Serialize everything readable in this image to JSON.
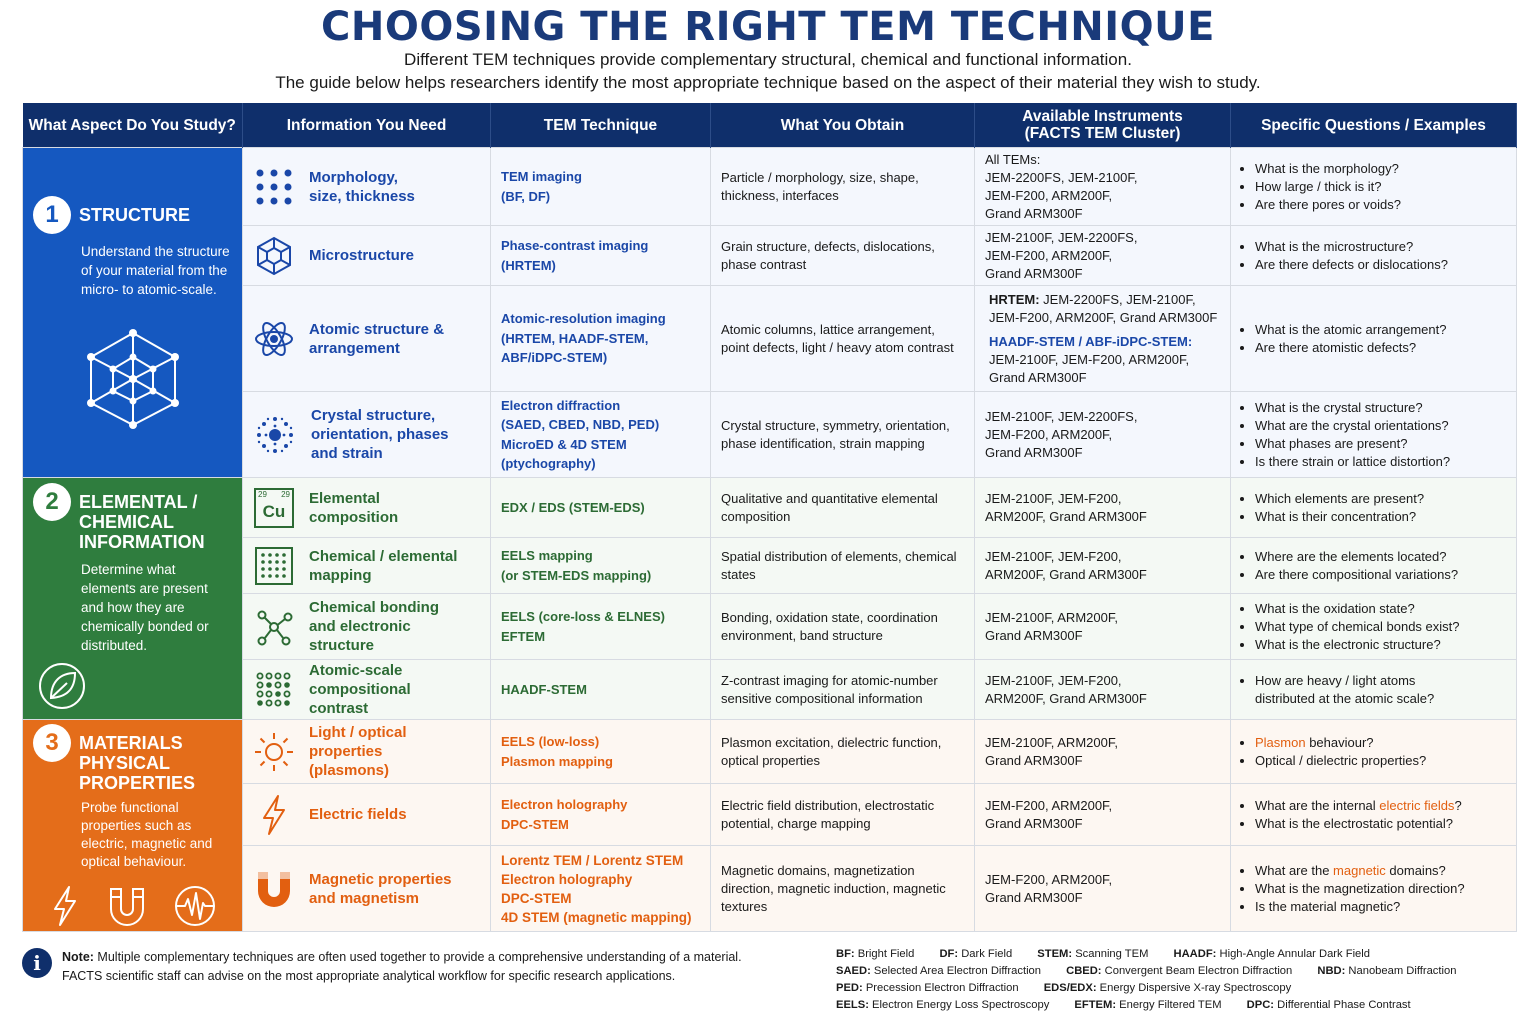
{
  "title": "CHOOSING THE RIGHT TEM TECHNIQUE",
  "subtitle1": "Different TEM techniques provide complementary structural, chemical and functional information.",
  "subtitle2": "The guide below helps researchers identify the most appropriate technique based on the aspect of their material they wish to study.",
  "headers": {
    "aspect": "What Aspect Do You Study?",
    "info": "Information You Need",
    "tech": "TEM Technique",
    "obtain": "What You Obtain",
    "instr_line1": "Available Instruments",
    "instr_line2": "(FACTS TEM Cluster)",
    "questions": "Specific Questions / Examples"
  },
  "aspects": {
    "structure": {
      "num": "1",
      "title": "STRUCTURE",
      "desc": "Understand the structure of your material from the micro- to atomic-scale."
    },
    "chemical": {
      "num": "2",
      "title_l1": "ELEMENTAL /",
      "title_l2": "CHEMICAL",
      "title_l3": "INFORMATION",
      "desc": "Determine what elements are present and how they are chemically bonded or distributed."
    },
    "physical": {
      "num": "3",
      "title_l1": "MATERIALS",
      "title_l2": "PHYSICAL",
      "title_l3": "PROPERTIES",
      "desc": "Probe functional properties such as electric, magnetic and optical behaviour."
    }
  },
  "rows": {
    "r1": {
      "info_l1": "Morphology,",
      "info_l2": "size, thickness",
      "tech_l1": "TEM imaging",
      "tech_l2": "(BF, DF)",
      "obtain": "Particle / morphology, size, shape, thickness, interfaces",
      "instr_l1": "All TEMs:",
      "instr_l2": "JEM-2200FS, JEM-2100F,",
      "instr_l3": "JEM-F200, ARM200F,",
      "instr_l4": "Grand ARM300F",
      "q1": "What is the morphology?",
      "q2": "How large / thick is it?",
      "q3": "Are there pores or voids?"
    },
    "r2": {
      "info": "Microstructure",
      "tech_l1": "Phase-contrast imaging",
      "tech_l2": "(HRTEM)",
      "obtain": "Grain structure, defects, dislocations, phase contrast",
      "instr_l1": "JEM-2100F, JEM-2200FS,",
      "instr_l2": "JEM-F200, ARM200F,",
      "instr_l3": "Grand ARM300F",
      "q1": "What is the microstructure?",
      "q2": "Are there defects or dislocations?"
    },
    "r3": {
      "info_l1": "Atomic structure &",
      "info_l2": "arrangement",
      "tech_l1": "Atomic-resolution imaging",
      "tech_l2": "(HRTEM, HAADF-STEM,",
      "tech_l3": "ABF/iDPC-STEM)",
      "obtain": "Atomic columns, lattice arrangement, point defects, light / heavy atom contrast",
      "instr_lbl1": "HRTEM:",
      "instr_a1": " JEM-2200FS, JEM-2100F,",
      "instr_a2": "JEM-F200, ARM200F, Grand ARM300F",
      "instr_lbl2": "HAADF-STEM / ABF-iDPC-STEM:",
      "instr_b1": "JEM-2100F, JEM-F200, ARM200F,",
      "instr_b2": "Grand ARM300F",
      "q1": "What is the atomic arrangement?",
      "q2": "Are there atomistic defects?"
    },
    "r4": {
      "info_l1": "Crystal structure,",
      "info_l2": "orientation, phases",
      "info_l3": "and strain",
      "tech_l1": "Electron diffraction",
      "tech_l2": "(SAED, CBED, NBD, PED)",
      "tech_l3": "MicroED & 4D STEM",
      "tech_l4": "(ptychography)",
      "obtain": "Crystal structure, symmetry, orientation, phase identification, strain mapping",
      "instr_l1": "JEM-2100F, JEM-2200FS,",
      "instr_l2": "JEM-F200, ARM200F,",
      "instr_l3": "Grand ARM300F",
      "q1": "What is the crystal structure?",
      "q2": "What are the crystal orientations?",
      "q3": "What phases are present?",
      "q4": "Is there strain or lattice distortion?"
    },
    "r5": {
      "info_l1": "Elemental",
      "info_l2": "composition",
      "cu_num1": "29",
      "cu_num2": "29",
      "cu_sym": "Cu",
      "tech": "EDX / EDS (STEM-EDS)",
      "obtain": "Qualitative and quantitative elemental composition",
      "instr_l1": "JEM-2100F, JEM-F200,",
      "instr_l2": "ARM200F, Grand ARM300F",
      "q1": "Which elements are present?",
      "q2": "What is their concentration?"
    },
    "r6": {
      "info_l1": "Chemical / elemental",
      "info_l2": "mapping",
      "tech_l1": "EELS mapping",
      "tech_l2": "(or STEM-EDS mapping)",
      "obtain": "Spatial distribution of elements, chemical states",
      "instr_l1": "JEM-2100F, JEM-F200,",
      "instr_l2": "ARM200F, Grand ARM300F",
      "q1": "Where are the elements located?",
      "q2": "Are there compositional variations?"
    },
    "r7": {
      "info_l1": "Chemical bonding",
      "info_l2": "and electronic",
      "info_l3": "structure",
      "tech_l1": "EELS (core-loss & ELNES)",
      "tech_l2": "EFTEM",
      "obtain": "Bonding, oxidation state, coordination environment, band structure",
      "instr_l1": "JEM-2100F, ARM200F,",
      "instr_l2": "Grand ARM300F",
      "q1": "What is the oxidation state?",
      "q2": "What type of chemical bonds exist?",
      "q3": "What is the electronic structure?"
    },
    "r8": {
      "info_l1": "Atomic-scale",
      "info_l2": "compositional",
      "info_l3": "contrast",
      "tech": "HAADF-STEM",
      "obtain": "Z-contrast imaging for atomic-number sensitive compositional information",
      "instr_l1": "JEM-2100F, JEM-F200,",
      "instr_l2": "ARM200F, Grand ARM300F",
      "q1_l1": "How are heavy / light atoms",
      "q1_l2": "distributed at the atomic scale?"
    },
    "r9": {
      "info_l1": "Light / optical",
      "info_l2": "properties",
      "info_l3": "(plasmons)",
      "tech_l1": "EELS (low-loss)",
      "tech_l2": "Plasmon mapping",
      "obtain": "Plasmon excitation, dielectric function, optical properties",
      "instr_l1": "JEM-2100F, ARM200F,",
      "instr_l2": "Grand ARM300F",
      "q1_hl": "Plasmon",
      "q1_rest": " behaviour?",
      "q2": "Optical / dielectric properties?"
    },
    "r10": {
      "info": "Electric fields",
      "tech_l1": "Electron holography",
      "tech_l2": "DPC-STEM",
      "obtain": "Electric field distribution, electrostatic potential, charge mapping",
      "instr_l1": "JEM-F200, ARM200F,",
      "instr_l2": "Grand ARM300F",
      "q1_pre": "What are the internal ",
      "q1_hl": "electric fields",
      "q1_post": "?",
      "q2": "What is the electrostatic potential?"
    },
    "r11": {
      "info_l1": "Magnetic properties",
      "info_l2": "and magnetism",
      "tech_l1": "Lorentz TEM / Lorentz STEM",
      "tech_l2": "Electron holography",
      "tech_l3": "DPC-STEM",
      "tech_l4": "4D STEM (magnetic mapping)",
      "obtain": "Magnetic domains, magnetization direction, magnetic induction, magnetic textures",
      "instr_l1": "JEM-F200, ARM200F,",
      "instr_l2": "Grand ARM300F",
      "q1_pre": "What are the ",
      "q1_hl": "magnetic",
      "q1_post": " domains?",
      "q2": "What is the magnetization direction?",
      "q3": "Is the material magnetic?"
    }
  },
  "note": {
    "icon": "i",
    "label": "Note:",
    "text1": " Multiple complementary techniques are often used together to provide a comprehensive understanding of a material.",
    "text2": "FACTS scientific staff can advise on the most appropriate analytical workflow for specific research applications."
  },
  "abbr": [
    {
      "k": "BF:",
      "v": " Bright Field"
    },
    {
      "k": "DF:",
      "v": " Dark Field"
    },
    {
      "k": "STEM:",
      "v": " Scanning TEM"
    },
    {
      "k": "HAADF:",
      "v": " High-Angle Annular Dark Field"
    },
    {
      "k": "SAED:",
      "v": " Selected Area Electron Diffraction"
    },
    {
      "k": "CBED:",
      "v": " Convergent Beam Electron Diffraction"
    },
    {
      "k": "NBD:",
      "v": " Nanobeam Diffraction"
    },
    {
      "k": "PED:",
      "v": " Precession Electron Diffraction"
    },
    {
      "k": "EDS/EDX:",
      "v": " Energy Dispersive X-ray Spectroscopy"
    },
    {
      "k": "EELS:",
      "v": " Electron Energy Loss Spectroscopy"
    },
    {
      "k": "EFTEM:",
      "v": " Energy Filtered TEM"
    },
    {
      "k": "DPC:",
      "v": " Differential Phase Contrast"
    }
  ],
  "colors": {
    "navy": "#0f2f6b",
    "blue": "#1558c0",
    "green": "#2f7d3e",
    "orange": "#e46d1a"
  }
}
